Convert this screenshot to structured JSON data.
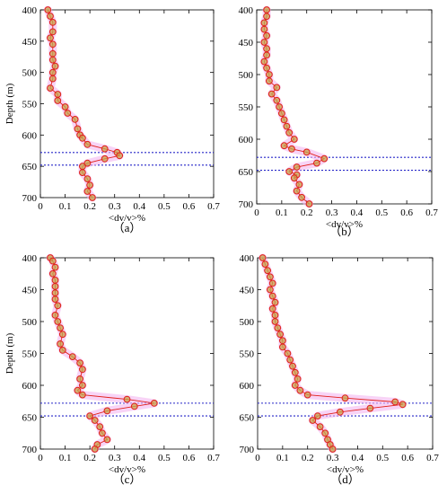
{
  "chart_data": [
    {
      "type": "line",
      "panel_label": "（a）",
      "xlabel": "<dv/v>%",
      "ylabel": "Depth (m)",
      "xlim": [
        0,
        0.7
      ],
      "ylim": [
        400,
        700
      ],
      "y_inverted": true,
      "xticks": [
        "0",
        "0.1",
        "0.2",
        "0.3",
        "0.4",
        "0.5",
        "0.6",
        "0.7"
      ],
      "yticks": [
        "400",
        "450",
        "500",
        "550",
        "600",
        "650",
        "700"
      ],
      "reference_lines_depth": [
        628,
        648
      ],
      "series": [
        {
          "points": [
            [
              0.03,
              400
            ],
            [
              0.04,
              410
            ],
            [
              0.05,
              420
            ],
            [
              0.05,
              435
            ],
            [
              0.04,
              445
            ],
            [
              0.05,
              455
            ],
            [
              0.05,
              470
            ],
            [
              0.05,
              480
            ],
            [
              0.06,
              490
            ],
            [
              0.05,
              500
            ],
            [
              0.05,
              510
            ],
            [
              0.04,
              525
            ],
            [
              0.07,
              535
            ],
            [
              0.07,
              545
            ],
            [
              0.1,
              555
            ],
            [
              0.11,
              565
            ],
            [
              0.14,
              575
            ],
            [
              0.15,
              590
            ],
            [
              0.16,
              600
            ],
            [
              0.17,
              605
            ],
            [
              0.19,
              615
            ],
            [
              0.26,
              622
            ],
            [
              0.31,
              628
            ],
            [
              0.32,
              633
            ],
            [
              0.26,
              638
            ],
            [
              0.19,
              645
            ],
            [
              0.17,
              650
            ],
            [
              0.17,
              660
            ],
            [
              0.19,
              670
            ],
            [
              0.2,
              680
            ],
            [
              0.19,
              690
            ],
            [
              0.21,
              700
            ]
          ]
        }
      ]
    },
    {
      "type": "line",
      "panel_label": "（b）",
      "xlabel": "<dv/v>%",
      "ylabel": "",
      "xlim": [
        0,
        0.7
      ],
      "ylim": [
        400,
        700
      ],
      "y_inverted": true,
      "xticks": [
        "0",
        "0.1",
        "0.2",
        "0.3",
        "0.4",
        "0.5",
        "0.6",
        "0.7"
      ],
      "yticks": [
        "400",
        "450",
        "500",
        "550",
        "600",
        "650",
        "700"
      ],
      "reference_lines_depth": [
        628,
        648
      ],
      "series": [
        {
          "points": [
            [
              0.04,
              400
            ],
            [
              0.04,
              410
            ],
            [
              0.03,
              420
            ],
            [
              0.03,
              430
            ],
            [
              0.04,
              440
            ],
            [
              0.03,
              450
            ],
            [
              0.04,
              460
            ],
            [
              0.04,
              470
            ],
            [
              0.03,
              480
            ],
            [
              0.04,
              490
            ],
            [
              0.05,
              500
            ],
            [
              0.05,
              510
            ],
            [
              0.08,
              520
            ],
            [
              0.06,
              530
            ],
            [
              0.08,
              540
            ],
            [
              0.09,
              550
            ],
            [
              0.1,
              560
            ],
            [
              0.11,
              570
            ],
            [
              0.12,
              580
            ],
            [
              0.13,
              590
            ],
            [
              0.15,
              600
            ],
            [
              0.11,
              610
            ],
            [
              0.14,
              615
            ],
            [
              0.2,
              620
            ],
            [
              0.27,
              630
            ],
            [
              0.24,
              637
            ],
            [
              0.16,
              643
            ],
            [
              0.13,
              650
            ],
            [
              0.16,
              655
            ],
            [
              0.15,
              660
            ],
            [
              0.17,
              670
            ],
            [
              0.16,
              680
            ],
            [
              0.18,
              690
            ],
            [
              0.21,
              700
            ]
          ]
        }
      ]
    },
    {
      "type": "line",
      "panel_label": "（c）",
      "xlabel": "<dv/v>%",
      "ylabel": "Depth (m)",
      "xlim": [
        0,
        0.7
      ],
      "ylim": [
        400,
        700
      ],
      "y_inverted": true,
      "xticks": [
        "0",
        "0.1",
        "0.2",
        "0.3",
        "0.4",
        "0.5",
        "0.6",
        "0.7"
      ],
      "yticks": [
        "400",
        "450",
        "500",
        "550",
        "600",
        "650",
        "700"
      ],
      "reference_lines_depth": [
        628,
        648
      ],
      "series": [
        {
          "points": [
            [
              0.04,
              400
            ],
            [
              0.05,
              405
            ],
            [
              0.06,
              415
            ],
            [
              0.05,
              425
            ],
            [
              0.06,
              435
            ],
            [
              0.06,
              445
            ],
            [
              0.06,
              455
            ],
            [
              0.06,
              465
            ],
            [
              0.07,
              475
            ],
            [
              0.06,
              490
            ],
            [
              0.07,
              500
            ],
            [
              0.08,
              510
            ],
            [
              0.09,
              520
            ],
            [
              0.08,
              535
            ],
            [
              0.09,
              545
            ],
            [
              0.13,
              555
            ],
            [
              0.16,
              565
            ],
            [
              0.17,
              575
            ],
            [
              0.16,
              590
            ],
            [
              0.17,
              600
            ],
            [
              0.15,
              608
            ],
            [
              0.17,
              615
            ],
            [
              0.35,
              622
            ],
            [
              0.46,
              628
            ],
            [
              0.38,
              633
            ],
            [
              0.27,
              640
            ],
            [
              0.2,
              648
            ],
            [
              0.22,
              655
            ],
            [
              0.24,
              665
            ],
            [
              0.25,
              675
            ],
            [
              0.27,
              685
            ],
            [
              0.23,
              693
            ],
            [
              0.22,
              700
            ]
          ]
        }
      ]
    },
    {
      "type": "line",
      "panel_label": "（d）",
      "xlabel": "<dv/v>%",
      "ylabel": "",
      "xlim": [
        0,
        0.7
      ],
      "ylim": [
        400,
        700
      ],
      "y_inverted": true,
      "xticks": [
        "0",
        "0.1",
        "0.2",
        "0.3",
        "0.4",
        "0.5",
        "0.6",
        "0.7"
      ],
      "yticks": [
        "400",
        "450",
        "500",
        "550",
        "600",
        "650",
        "700"
      ],
      "reference_lines_depth": [
        628,
        648
      ],
      "series": [
        {
          "points": [
            [
              0.02,
              400
            ],
            [
              0.03,
              410
            ],
            [
              0.04,
              420
            ],
            [
              0.05,
              430
            ],
            [
              0.06,
              440
            ],
            [
              0.05,
              450
            ],
            [
              0.06,
              460
            ],
            [
              0.07,
              470
            ],
            [
              0.06,
              480
            ],
            [
              0.07,
              490
            ],
            [
              0.07,
              500
            ],
            [
              0.08,
              510
            ],
            [
              0.09,
              520
            ],
            [
              0.1,
              530
            ],
            [
              0.1,
              540
            ],
            [
              0.12,
              550
            ],
            [
              0.13,
              560
            ],
            [
              0.14,
              570
            ],
            [
              0.15,
              580
            ],
            [
              0.16,
              590
            ],
            [
              0.15,
              600
            ],
            [
              0.17,
              608
            ],
            [
              0.2,
              615
            ],
            [
              0.35,
              620
            ],
            [
              0.55,
              626
            ],
            [
              0.58,
              630
            ],
            [
              0.45,
              636
            ],
            [
              0.33,
              642
            ],
            [
              0.24,
              648
            ],
            [
              0.22,
              655
            ],
            [
              0.25,
              665
            ],
            [
              0.27,
              675
            ],
            [
              0.28,
              685
            ],
            [
              0.29,
              693
            ],
            [
              0.3,
              700
            ]
          ]
        }
      ]
    }
  ],
  "colors": {
    "marker_fill": "#c8a14a",
    "marker_edge": "#e0201c",
    "line": "#e0201c",
    "band": "#f4b6f0",
    "reference_line": "#2626c8",
    "axis": "#000000"
  }
}
